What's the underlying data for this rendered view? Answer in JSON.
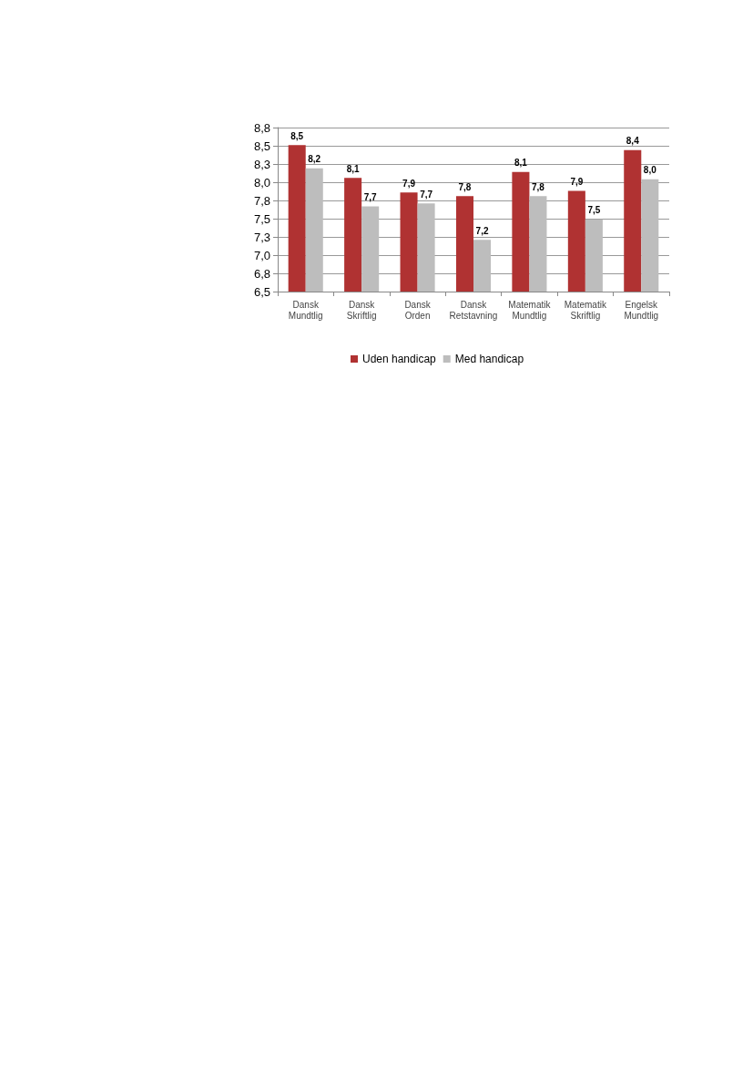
{
  "chart_data": {
    "type": "bar",
    "categories": [
      "Dansk\nMundtlig",
      "Dansk\nSkriftlig",
      "Dansk\nOrden",
      "Dansk\nRetstavning",
      "Matematik\nMundtlig",
      "Matematik\nSkriftlig",
      "Engelsk\nMundtlig"
    ],
    "series": [
      {
        "name": "Uden handicap",
        "color": "#b03232",
        "values": [
          8.51,
          8.06,
          7.86,
          7.81,
          8.14,
          7.88,
          8.44
        ],
        "value_labels": [
          "8,5",
          "8,1",
          "7,9",
          "7,8",
          "8,1",
          "7,9",
          "8,4"
        ]
      },
      {
        "name": "Med handicap",
        "color": "#bdbdbd",
        "values": [
          8.19,
          7.67,
          7.71,
          7.21,
          7.81,
          7.49,
          8.04
        ],
        "value_labels": [
          "8,2",
          "7,7",
          "7,7",
          "7,2",
          "7,8",
          "7,5",
          "8,0"
        ]
      }
    ],
    "ylim": [
      6.5,
      8.75
    ],
    "yticks": [
      {
        "value": 6.5,
        "label": "6,5"
      },
      {
        "value": 6.75,
        "label": "6,8"
      },
      {
        "value": 7.0,
        "label": "7,0"
      },
      {
        "value": 7.25,
        "label": "7,3"
      },
      {
        "value": 7.5,
        "label": "7,5"
      },
      {
        "value": 7.75,
        "label": "7,8"
      },
      {
        "value": 8.0,
        "label": "8,0"
      },
      {
        "value": 8.25,
        "label": "8,3"
      },
      {
        "value": 8.5,
        "label": "8,5"
      },
      {
        "value": 8.75,
        "label": "8,8"
      }
    ],
    "grid": "y",
    "legend": "bottom"
  }
}
